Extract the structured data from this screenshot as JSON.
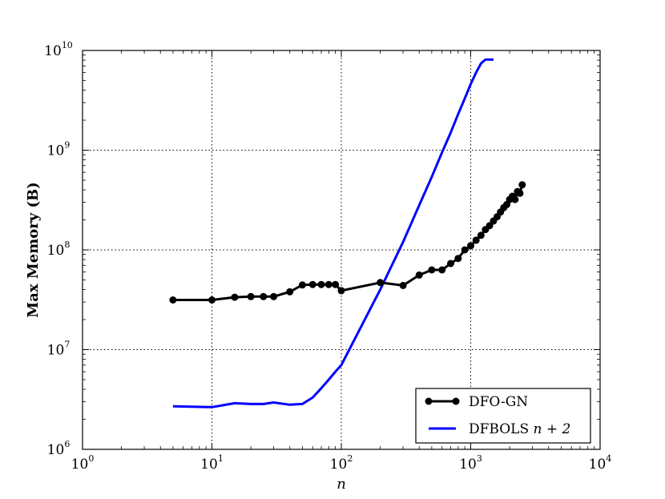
{
  "chart_data": {
    "type": "line",
    "xlabel": "n",
    "ylabel": "Max Memory (B)",
    "xscale": "log",
    "yscale": "log",
    "xlim": [
      1,
      10000
    ],
    "ylim": [
      1000000,
      10000000000
    ],
    "grid": true,
    "legend_position": "bottom-right",
    "x_ticks": [
      {
        "base": "10",
        "exp": "0",
        "value": 1
      },
      {
        "base": "10",
        "exp": "1",
        "value": 10
      },
      {
        "base": "10",
        "exp": "2",
        "value": 100
      },
      {
        "base": "10",
        "exp": "3",
        "value": 1000
      },
      {
        "base": "10",
        "exp": "4",
        "value": 10000
      }
    ],
    "y_ticks": [
      {
        "base": "10",
        "exp": "6",
        "value": 1000000
      },
      {
        "base": "10",
        "exp": "7",
        "value": 10000000
      },
      {
        "base": "10",
        "exp": "8",
        "value": 100000000
      },
      {
        "base": "10",
        "exp": "9",
        "value": 1000000000
      },
      {
        "base": "10",
        "exp": "10",
        "value": 10000000000
      }
    ],
    "series": [
      {
        "name": "DFO-GN",
        "color": "#000000",
        "marker": "circle",
        "x": [
          5,
          10,
          15,
          20,
          25,
          30,
          40,
          50,
          60,
          70,
          80,
          90,
          100,
          200,
          300,
          400,
          500,
          600,
          700,
          800,
          900,
          1000,
          1100,
          1200,
          1300,
          1400,
          1500,
          1600,
          1700,
          1800,
          1900,
          2000,
          2100,
          2200,
          2300,
          2400,
          2500
        ],
        "y": [
          31500000,
          31500000,
          33500000,
          34000000,
          34000000,
          34000000,
          38000000,
          44500000,
          45000000,
          45000000,
          45000000,
          45000000,
          39000000,
          47000000,
          44000000,
          56000000,
          63000000,
          63000000,
          73000000,
          82000000,
          100000000,
          110000000,
          125000000,
          140000000,
          160000000,
          175000000,
          195000000,
          215000000,
          240000000,
          265000000,
          285000000,
          320000000,
          345000000,
          320000000,
          385000000,
          370000000,
          450000000
        ]
      },
      {
        "name": "DFBOLS",
        "name_suffix": "n + 2",
        "color": "#0000ff",
        "marker": "none",
        "x": [
          5,
          10,
          15,
          20,
          25,
          30,
          40,
          50,
          60,
          70,
          80,
          90,
          100,
          200,
          300,
          400,
          500,
          600,
          700,
          800,
          900,
          1000,
          1100,
          1200,
          1300,
          1400,
          1500
        ],
        "y": [
          2700000,
          2650000,
          2900000,
          2850000,
          2850000,
          2950000,
          2800000,
          2850000,
          3300000,
          4100000,
          5000000,
          6000000,
          7000000,
          40000000,
          120000000,
          280000000,
          540000000,
          950000000,
          1500000000,
          2300000000,
          3300000000,
          4600000000,
          6000000000,
          7400000000,
          8100000000,
          8100000000,
          8100000000
        ]
      }
    ]
  }
}
